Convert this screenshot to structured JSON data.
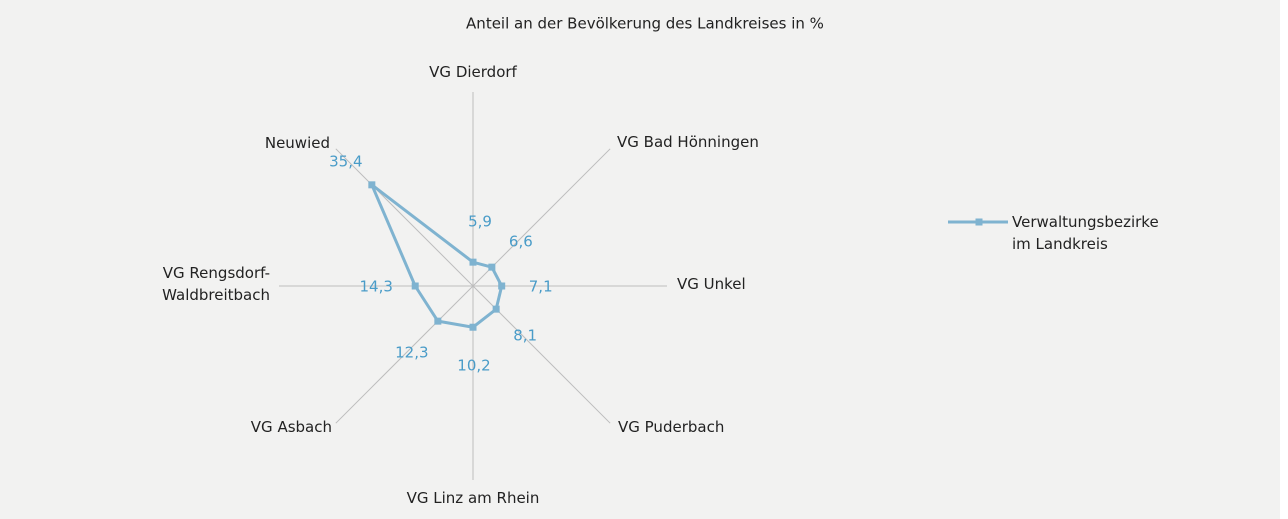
{
  "chart_data": {
    "type": "radar",
    "title": "Anteil an der Bevölkerung des Landkreises in %",
    "categories": [
      "VG Dierdorf",
      "VG Bad Hönningen",
      "VG Unkel",
      "VG Puderbach",
      "VG Linz am Rhein",
      "VG Asbach",
      "VG Rengsdorf-Waldbreitbach",
      "Neuwied"
    ],
    "series": [
      {
        "name": "Verwaltungsbezirke im Landkreis",
        "color": "#7fb3d0",
        "values": [
          5.9,
          6.6,
          7.1,
          8.1,
          10.2,
          12.3,
          14.3,
          35.4
        ],
        "value_labels": [
          "5,9",
          "6,6",
          "7,1",
          "8,1",
          "10,2",
          "12,3",
          "14,3",
          "35,4"
        ]
      }
    ],
    "ylim": [
      0,
      48
    ],
    "legend": "right"
  }
}
